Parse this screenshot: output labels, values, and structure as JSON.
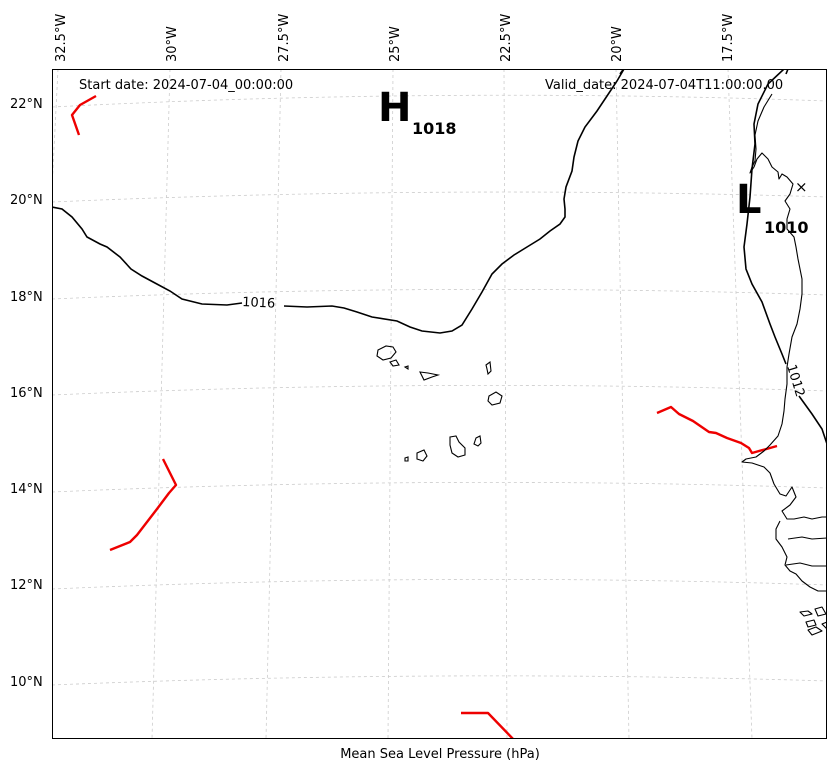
{
  "header": {
    "start_date": "Start date: 2024-07-04_00:00:00",
    "valid_date": "Valid_date: 2024-07-04T11:00:00.00"
  },
  "axes": {
    "lon_labels": [
      "32.5°W",
      "30°W",
      "27.5°W",
      "25°W",
      "22.5°W",
      "20°W",
      "17.5°W"
    ],
    "lat_labels": [
      "22°N",
      "20°N",
      "18°N",
      "16°N",
      "14°N",
      "12°N",
      "10°N"
    ]
  },
  "pressure_systems": [
    {
      "symbol": "H",
      "value": "1018"
    },
    {
      "symbol": "L",
      "value": "1010"
    }
  ],
  "isobar_labels": [
    "1016",
    "1012"
  ],
  "marker": "×",
  "caption": "Mean Sea Level Pressure (hPa)",
  "colors": {
    "isobar": "#000000",
    "front": "#ee0000",
    "grid": "#cccccc",
    "coast": "#000000"
  }
}
